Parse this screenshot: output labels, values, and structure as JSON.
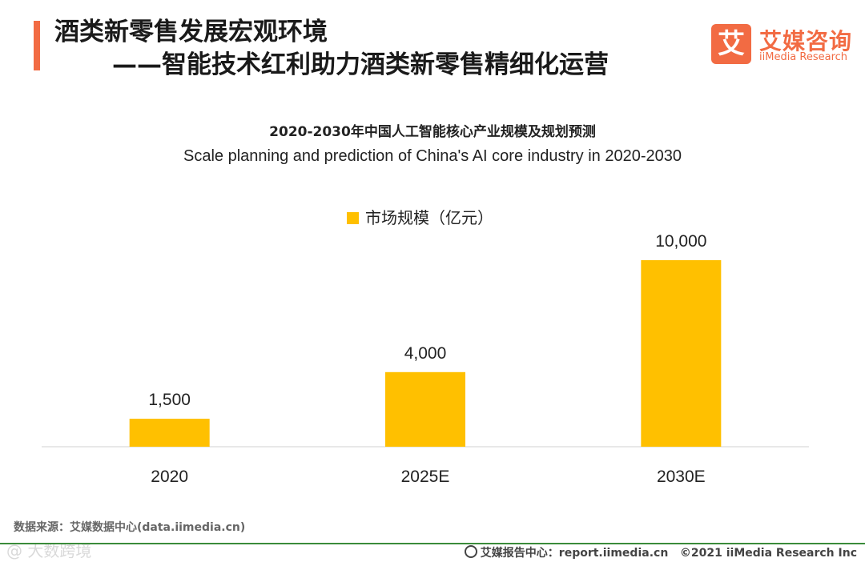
{
  "header": {
    "title_line1": "酒类新零售发展宏观环境",
    "title_line2": "——智能技术红利助力酒类新零售精细化运营",
    "accent_color": "#f26b43"
  },
  "brand": {
    "logo_char": "艾",
    "name_cn": "艾媒咨询",
    "name_en": "iiMedia Research"
  },
  "chart_data": {
    "type": "bar",
    "title": "2020-2030年中国人工智能核心产业规模及规划预测",
    "subtitle": "Scale planning and prediction of China's AI core industry in 2020-2030",
    "categories": [
      "2020",
      "2025E",
      "2030E"
    ],
    "series": [
      {
        "name": "市场规模（亿元）",
        "values": [
          1500,
          4000,
          10000
        ],
        "color": "#ffc000"
      }
    ],
    "value_labels": [
      "1,500",
      "4,000",
      "10,000"
    ],
    "ylim": [
      0,
      10000
    ],
    "legend_position": "top-center",
    "grid": false
  },
  "footer": {
    "source": "数据来源：艾媒数据中心(data.iimedia.cn)",
    "report": "艾媒报告中心：report.iimedia.cn",
    "copyright": "©2021  iiMedia Research  Inc",
    "watermark": "@ 大数跨境"
  }
}
